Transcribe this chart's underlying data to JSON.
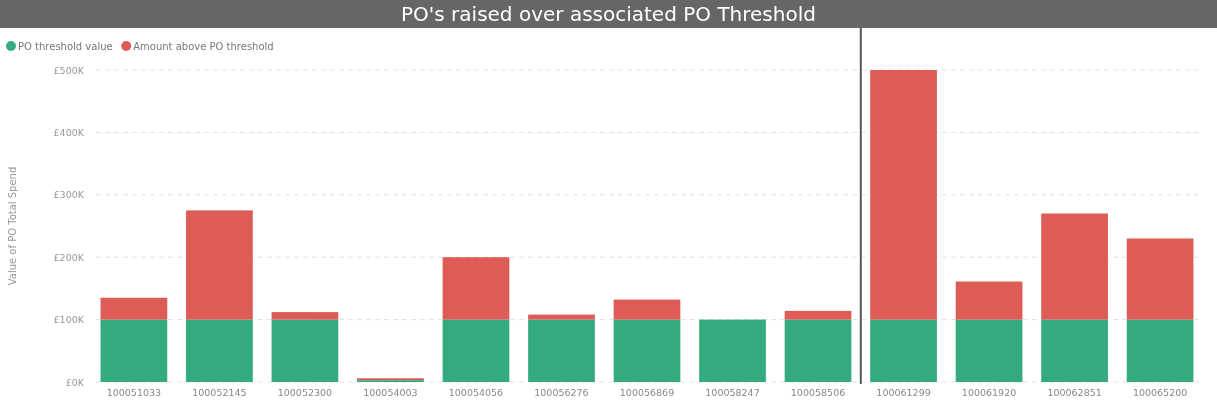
{
  "chart_data": {
    "type": "bar",
    "title": "PO's raised over associated PO Threshold",
    "ylabel": "Value of PO Total Spend",
    "categories": [
      "100051033",
      "100052145",
      "100052300",
      "100054003",
      "100054056",
      "100056276",
      "100056869",
      "100058247",
      "100058506",
      "100061299",
      "100061920",
      "100062851",
      "100065200"
    ],
    "series": [
      {
        "name": "PO threshold value",
        "color": "#33ab7f",
        "values": [
          100,
          100,
          100,
          3,
          100,
          100,
          100,
          100,
          100,
          100,
          100,
          100,
          100
        ]
      },
      {
        "name": "Amount above PO threshold",
        "color": "#dd5c56",
        "values": [
          35,
          175,
          12,
          3,
          100,
          8,
          32,
          0,
          14,
          400,
          61,
          170,
          130
        ]
      }
    ],
    "stacked": true,
    "ylim": [
      0,
      500
    ],
    "yticks": [
      {
        "value": 0,
        "label": "£0K"
      },
      {
        "value": 100,
        "label": "£100K"
      },
      {
        "value": 200,
        "label": "£200K"
      },
      {
        "value": 300,
        "label": "£300K"
      },
      {
        "value": 400,
        "label": "£400K"
      },
      {
        "value": 500,
        "label": "£500K"
      }
    ],
    "grid": "y",
    "legend": "top left",
    "ref_lines": [
      {
        "axis": "x",
        "value": "100061299",
        "color": "#555555"
      }
    ]
  }
}
